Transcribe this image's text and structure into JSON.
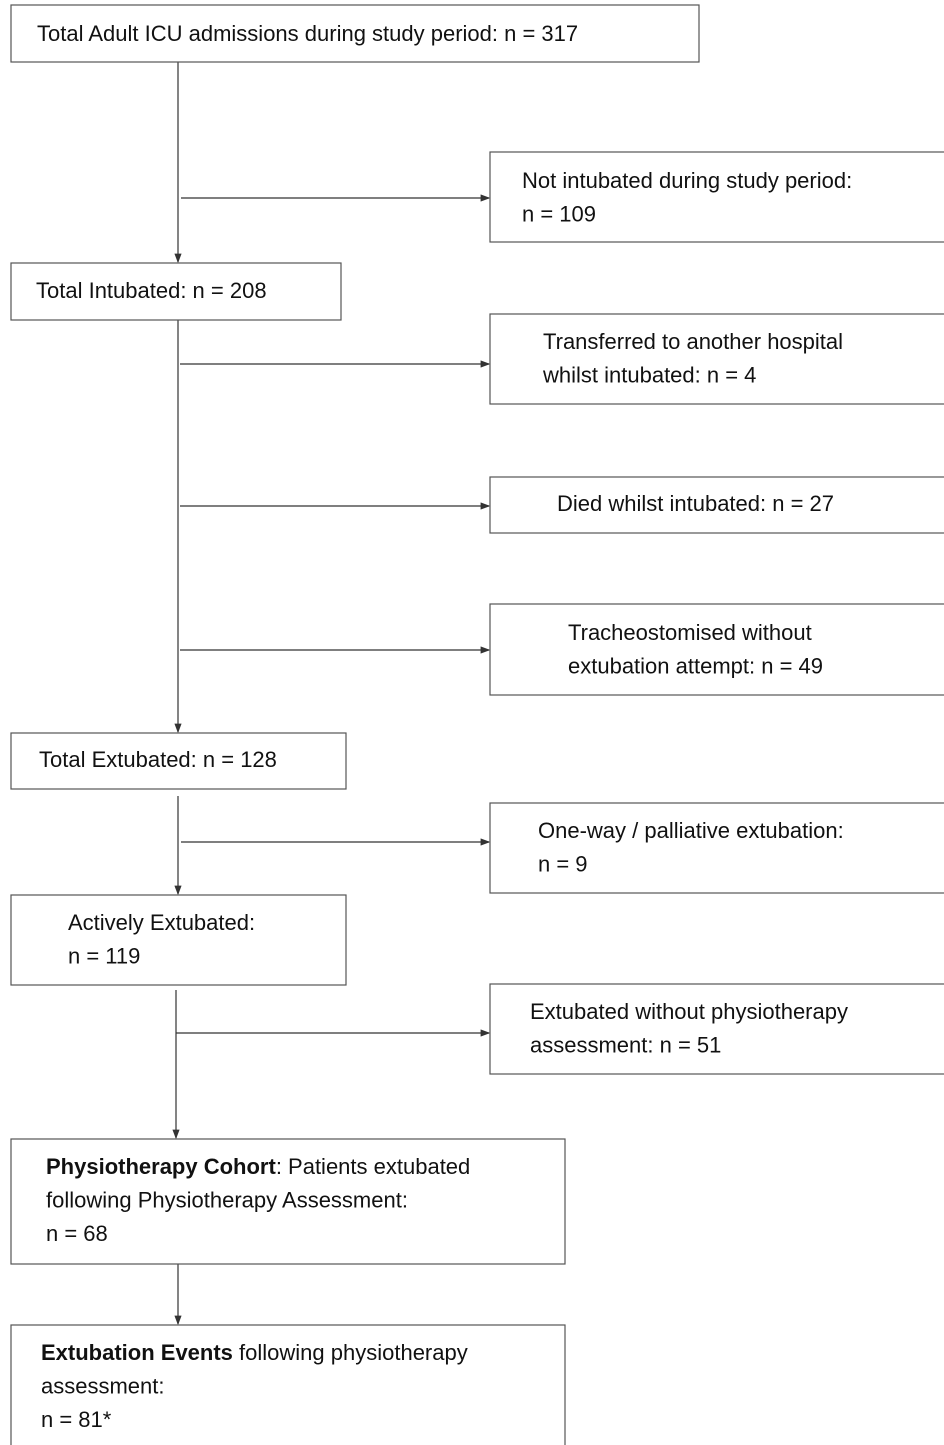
{
  "nodes": [
    {
      "lines": [
        "Total Adult ICU admissions during study period: n = 317"
      ]
    },
    {
      "lines": [
        "Not intubated during study period:",
        "n = 109"
      ]
    },
    {
      "lines": [
        "Total Intubated:  n = 208"
      ]
    },
    {
      "lines": [
        "Transferred to another hospital",
        "whilst intubated: n = 4"
      ]
    },
    {
      "lines": [
        "Died whilst intubated: n = 27"
      ]
    },
    {
      "lines": [
        "Tracheostomised without",
        "extubation attempt: n = 49"
      ]
    },
    {
      "lines": [
        "Total Extubated: n = 128"
      ]
    },
    {
      "lines": [
        "One-way / palliative extubation:",
        "n = 9"
      ]
    },
    {
      "lines": [
        "Actively Extubated:",
        "n = 119"
      ]
    },
    {
      "lines": [
        "Extubated without physiotherapy",
        "assessment: n = 51"
      ]
    },
    {
      "lines": [
        {
          "bold": "Physiotherapy Cohort",
          "text": ": Patients extubated"
        },
        "following Physiotherapy Assessment:",
        "n = 68"
      ]
    },
    {
      "lines": [
        {
          "bold": "Extubation Events",
          "text": " following physiotherapy"
        },
        "assessment:",
        "n = 81*"
      ]
    }
  ]
}
